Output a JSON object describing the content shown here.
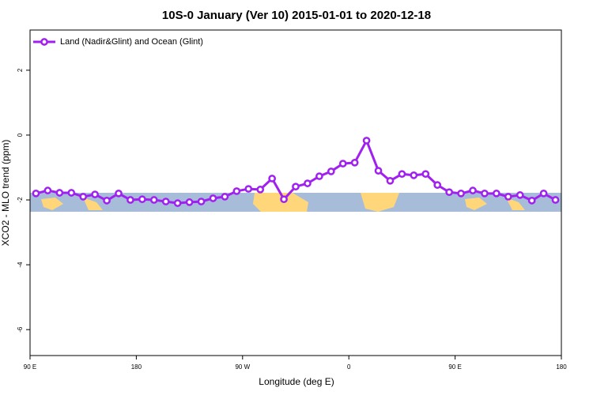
{
  "chart_data": {
    "type": "line",
    "title": "10S-0 January (Ver 10)   2015-01-01 to 2020-12-18",
    "x_label": "Longitude (deg E)",
    "y_label": "XCO2 - MLO trend (ppm)",
    "x": [
      95,
      105,
      115,
      125,
      135,
      145,
      155,
      165,
      175,
      185,
      195,
      205,
      215,
      225,
      235,
      245,
      255,
      265,
      275,
      285,
      295,
      305,
      315,
      325,
      335,
      345,
      355,
      365,
      375,
      385,
      395,
      405,
      415,
      425,
      435,
      445,
      455,
      465,
      475,
      485,
      495,
      505,
      515,
      525,
      535
    ],
    "series": [
      {
        "name": "Land (Nadir&Glint) and Ocean (Glint)",
        "color": "#a020f0",
        "values": [
          -1.8,
          -1.71,
          -1.78,
          -1.78,
          -1.9,
          -1.83,
          -2.02,
          -1.8,
          -2.0,
          -1.98,
          -2.0,
          -2.05,
          -2.1,
          -2.07,
          -2.05,
          -1.95,
          -1.9,
          -1.73,
          -1.66,
          -1.68,
          -1.34,
          -1.98,
          -1.59,
          -1.49,
          -1.27,
          -1.12,
          -0.88,
          -0.85,
          -0.17,
          -1.1,
          -1.41,
          -1.2,
          -1.24,
          -1.2,
          -1.54,
          -1.76,
          -1.8,
          -1.71,
          -1.8,
          -1.8,
          -1.9,
          -1.85,
          -2.02,
          -1.8,
          -2.0
        ]
      }
    ],
    "xlim": [
      90,
      540
    ],
    "ylim": [
      -6.8,
      3.24
    ],
    "xticks": [
      {
        "value": 90,
        "label": "90 E"
      },
      180,
      {
        "value": 270,
        "label": "90 W"
      },
      {
        "value": 360,
        "label": "0"
      },
      {
        "value": 450,
        "label": "90 E"
      },
      {
        "value": 540,
        "label": "180"
      }
    ],
    "yticks": [
      2,
      0,
      -2,
      -4,
      -6
    ],
    "legend": "top-left",
    "grid": false
  }
}
